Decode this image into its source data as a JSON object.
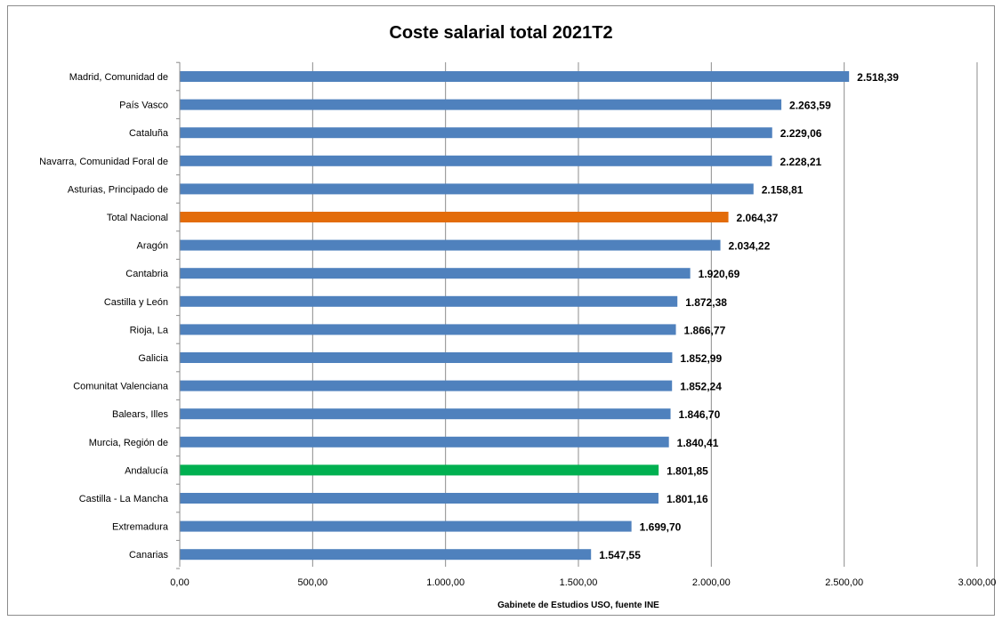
{
  "chart_data": {
    "type": "bar",
    "orientation": "horizontal",
    "title": "Coste salarial total 2021T2",
    "xlabel": "Gabinete de Estudios USO, fuente INE",
    "ylabel": "",
    "xlim": [
      0,
      3000
    ],
    "xticks": [
      "0,00",
      "500,00",
      "1.000,00",
      "1.500,00",
      "2.000,00",
      "2.500,00",
      "3.000,00"
    ],
    "grid": true,
    "legend": "none",
    "colors": {
      "default": "#4f81bd",
      "total": "#e36c0a",
      "highlight": "#00b050",
      "grid": "#8c8c8c"
    },
    "categories": [
      "Madrid, Comunidad de",
      "País Vasco",
      "Cataluña",
      "Navarra, Comunidad Foral de",
      "Asturias, Principado de",
      "Total Nacional",
      "Aragón",
      "Cantabria",
      "Castilla y León",
      "Rioja, La",
      "Galicia",
      "Comunitat Valenciana",
      "Balears, Illes",
      "Murcia, Región de",
      "Andalucía",
      "Castilla - La Mancha",
      "Extremadura",
      "Canarias"
    ],
    "values": [
      2518.39,
      2263.59,
      2229.06,
      2228.21,
      2158.81,
      2064.37,
      2034.22,
      1920.69,
      1872.38,
      1866.77,
      1852.99,
      1852.24,
      1846.7,
      1840.41,
      1801.85,
      1801.16,
      1699.7,
      1547.55
    ],
    "value_labels": [
      "2.518,39",
      "2.263,59",
      "2.229,06",
      "2.228,21",
      "2.158,81",
      "2.064,37",
      "2.034,22",
      "1.920,69",
      "1.872,38",
      "1.866,77",
      "1.852,99",
      "1.852,24",
      "1.846,70",
      "1.840,41",
      "1.801,85",
      "1.801,16",
      "1.699,70",
      "1.547,55"
    ],
    "bar_colors": [
      "default",
      "default",
      "default",
      "default",
      "default",
      "total",
      "default",
      "default",
      "default",
      "default",
      "default",
      "default",
      "default",
      "default",
      "highlight",
      "default",
      "default",
      "default"
    ]
  }
}
